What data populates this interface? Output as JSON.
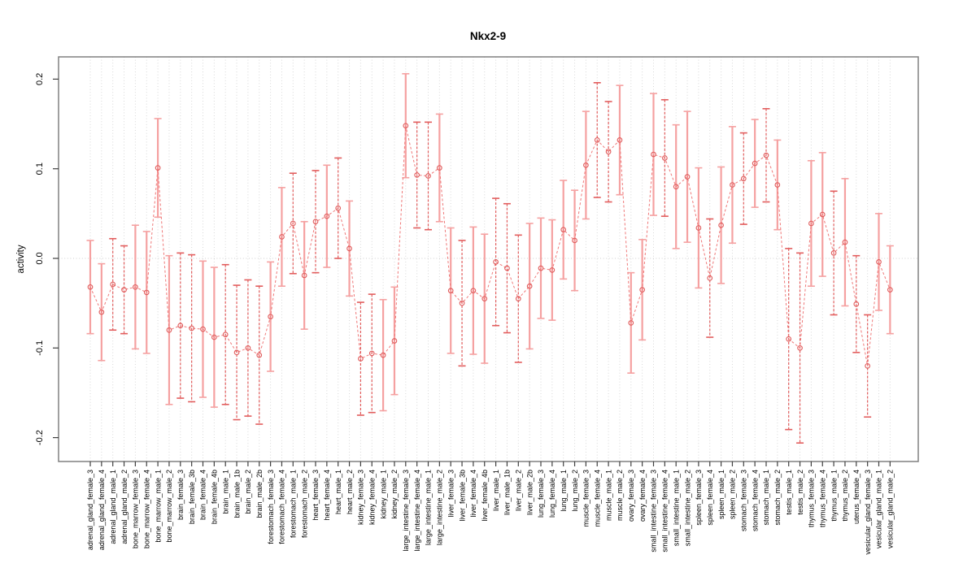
{
  "chart_data": {
    "type": "scatter",
    "title": "Nkx2-9",
    "ylabel": "activity",
    "xlabel": "",
    "legend": "none",
    "grid": "vertical dotted gridline at every category; dotted horizontal line at y=0",
    "ylim": [
      -0.225,
      0.225
    ],
    "yticks": [
      0.2,
      0.1,
      0.0,
      -0.1,
      -0.2
    ],
    "ytick_labels": [
      "0.2",
      "0.1",
      "0.0",
      "-0.1",
      "-0.2"
    ],
    "series_name": "motif activity with confidence error bars",
    "categories": [
      "adrenal_gland_female_3",
      "adrenal_gland_female_4",
      "adrenal_gland_male_1",
      "adrenal_gland_male_2",
      "bone_marrow_female_3",
      "bone_marrow_female_4",
      "bone_marrow_male_1",
      "bone_marrow_male_2",
      "brain_female_3",
      "brain_female_3b",
      "brain_female_4",
      "brain_female_4b",
      "brain_male_1",
      "brain_male_1b",
      "brain_male_2",
      "brain_male_2b",
      "forestomach_female_3",
      "forestomach_female_4",
      "forestomach_male_1",
      "forestomach_male_2",
      "heart_female_3",
      "heart_female_4",
      "heart_male_1",
      "heart_male_2",
      "kidney_female_3",
      "kidney_female_4",
      "kidney_male_1",
      "kidney_male_2",
      "large_intestine_female_3",
      "large_intestine_female_4",
      "large_intestine_male_1",
      "large_intestine_male_2",
      "liver_female_3",
      "liver_female_3b",
      "liver_female_4",
      "liver_female_4b",
      "liver_male_1",
      "liver_male_1b",
      "liver_male_2",
      "liver_male_2b",
      "lung_female_3",
      "lung_female_4",
      "lung_male_1",
      "lung_male_2",
      "muscle_female_3",
      "muscle_female_4",
      "muscle_male_1",
      "muscle_male_2",
      "ovary_female_3",
      "ovary_female_4",
      "small_intestine_female_3",
      "small_intestine_female_4",
      "small_intestine_male_1",
      "small_intestine_male_2",
      "spleen_female_3",
      "spleen_female_4",
      "spleen_male_1",
      "spleen_male_2",
      "stomach_female_3",
      "stomach_female_4",
      "stomach_male_1",
      "stomach_male_2",
      "testis_male_1",
      "testis_male_2",
      "thymus_female_3",
      "thymus_female_4",
      "thymus_male_1",
      "thymus_male_2",
      "uterus_female_4",
      "vesicular_gland_female_3",
      "vesicular_gland_male_1",
      "vesicular_gland_male_2"
    ],
    "values": [
      -0.032,
      -0.06,
      -0.029,
      -0.035,
      -0.032,
      -0.038,
      0.101,
      -0.08,
      -0.075,
      -0.078,
      -0.079,
      -0.088,
      -0.085,
      -0.105,
      -0.1,
      -0.108,
      -0.065,
      0.024,
      0.039,
      -0.019,
      0.041,
      0.047,
      0.056,
      0.011,
      -0.112,
      -0.106,
      -0.108,
      -0.092,
      0.148,
      0.093,
      0.092,
      0.101,
      -0.036,
      -0.05,
      -0.036,
      -0.045,
      -0.004,
      -0.011,
      -0.045,
      -0.031,
      -0.011,
      -0.013,
      0.032,
      0.02,
      0.104,
      0.132,
      0.119,
      0.132,
      -0.072,
      -0.035,
      0.116,
      0.112,
      0.08,
      0.091,
      0.034,
      -0.022,
      0.037,
      0.082,
      0.089,
      0.106,
      0.115,
      0.082,
      -0.09,
      -0.1,
      0.039,
      0.049,
      0.006,
      0.018,
      -0.051,
      -0.12,
      -0.004,
      -0.035
    ],
    "errors": [
      0.052,
      0.054,
      0.051,
      0.049,
      0.069,
      0.068,
      0.055,
      0.083,
      0.081,
      0.082,
      0.076,
      0.078,
      0.078,
      0.075,
      0.076,
      0.077,
      0.061,
      0.055,
      0.056,
      0.06,
      0.057,
      0.057,
      0.056,
      0.053,
      0.063,
      0.066,
      0.062,
      0.06,
      0.058,
      0.059,
      0.06,
      0.06,
      0.07,
      0.07,
      0.071,
      0.072,
      0.071,
      0.072,
      0.071,
      0.07,
      0.056,
      0.056,
      0.055,
      0.056,
      0.06,
      0.064,
      0.056,
      0.061,
      0.056,
      0.056,
      0.068,
      0.065,
      0.069,
      0.073,
      0.067,
      0.066,
      0.065,
      0.065,
      0.051,
      0.049,
      0.052,
      0.05,
      0.101,
      0.106,
      0.07,
      0.069,
      0.069,
      0.071,
      0.054,
      0.057,
      0.054,
      0.049
    ],
    "dashed_bar": [
      0,
      0,
      1,
      1,
      0,
      0,
      0,
      0,
      1,
      1,
      0,
      0,
      1,
      1,
      1,
      1,
      0,
      0,
      1,
      0,
      1,
      0,
      1,
      0,
      1,
      1,
      0,
      0,
      0,
      1,
      1,
      0,
      0,
      1,
      0,
      0,
      1,
      1,
      1,
      0,
      0,
      0,
      0,
      0,
      0,
      1,
      1,
      0,
      0,
      0,
      0,
      1,
      0,
      0,
      0,
      1,
      0,
      0,
      1,
      0,
      1,
      0,
      1,
      1,
      0,
      0,
      1,
      0,
      1,
      1,
      0,
      0
    ]
  },
  "colors": {
    "solid_bar": "#f5a1a1",
    "dashed_bar": "#e25d5d",
    "connector": "#ef7878",
    "marker_stroke": "#e05c5c",
    "grid": "#d7d7d7",
    "zero_line": "#cfcfcf",
    "frame": "#808080",
    "tick": "#404040",
    "text": "#000000"
  }
}
